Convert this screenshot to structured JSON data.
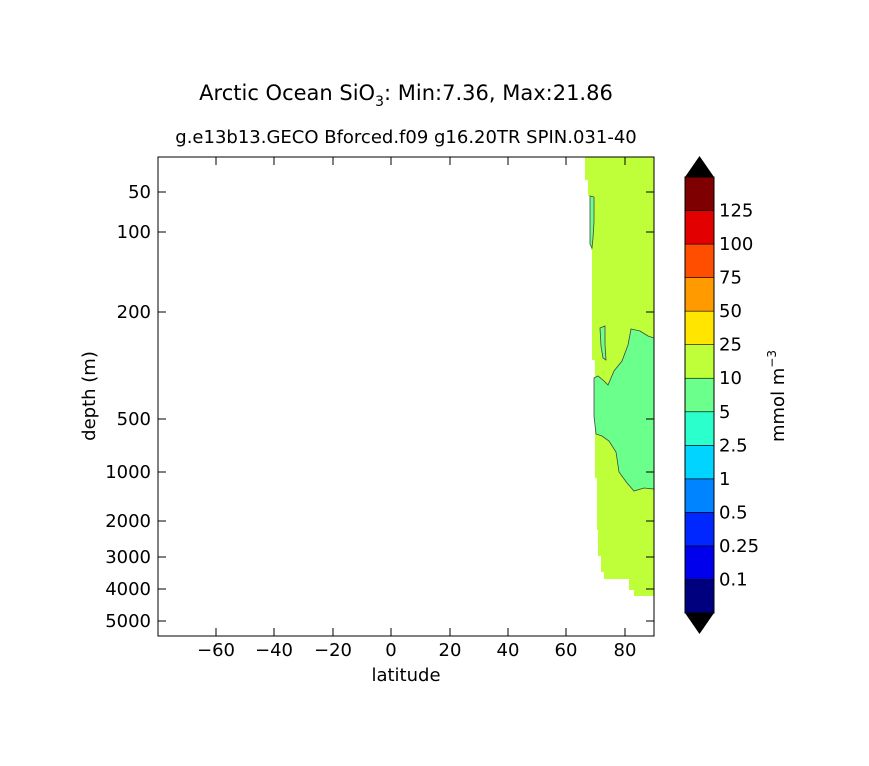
{
  "chart_data": {
    "type": "contour",
    "title_prefix": "Arctic Ocean SiO",
    "title_subscript": "3",
    "title_suffix": ": Min:7.36, Max:21.86",
    "subtitle": "g.e13b13.GECO Bforced.f09 g16.20TR SPIN.031-40",
    "xlabel": "latitude",
    "ylabel": "depth (m)",
    "xlim": [
      -80,
      90
    ],
    "ylim_depth": [
      20,
      6000
    ],
    "y_scale": "nonlinear (depth stretched)",
    "x_ticks": [
      -60,
      -40,
      -20,
      0,
      20,
      40,
      60,
      80
    ],
    "x_tick_labels": [
      "−60",
      "−40",
      "−20",
      "0",
      "20",
      "40",
      "60",
      "80"
    ],
    "y_ticks": [
      50,
      100,
      200,
      500,
      1000,
      2000,
      3000,
      4000,
      5000
    ],
    "y_tick_labels": [
      "50",
      "100",
      "200",
      "500",
      "1000",
      "2000",
      "3000",
      "4000",
      "5000"
    ],
    "colorbar": {
      "label_base": "mmol m",
      "label_exponent": "−3",
      "levels": [
        0.1,
        0.25,
        0.5,
        1,
        2.5,
        5,
        10,
        25,
        50,
        75,
        100,
        125
      ],
      "level_labels": [
        "0.1",
        "0.25",
        "0.5",
        "1",
        "2.5",
        "5",
        "10",
        "25",
        "50",
        "75",
        "100",
        "125"
      ],
      "colors": [
        "#00007f",
        "#0000ed",
        "#0027ff",
        "#0084ff",
        "#00d4ff",
        "#2bffcc",
        "#6bff8b",
        "#bfff39",
        "#ffe500",
        "#ff9a00",
        "#ff4e00",
        "#e20000",
        "#7f0000"
      ],
      "extend": "both",
      "extend_colors": [
        "#000000",
        "#000000"
      ]
    },
    "regions": [
      {
        "name": "10-25",
        "color": "#bfff39"
      },
      {
        "name": "5-10",
        "color": "#6bff8b"
      }
    ]
  }
}
